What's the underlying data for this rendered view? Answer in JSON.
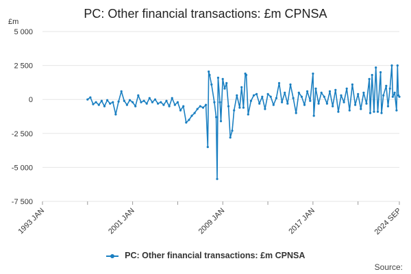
{
  "chart_data": {
    "type": "line",
    "title": "PC: Other financial transactions: £m CPNSA",
    "y_unit_label": "£m",
    "ylim": [
      -7500,
      5000
    ],
    "y_ticks": [
      5000,
      2500,
      0,
      -2500,
      -5000,
      -7500
    ],
    "y_tick_labels": [
      "5 000",
      "2 500",
      "0",
      "-2 500",
      "-5 000",
      "-7 500"
    ],
    "x_range": [
      "1993-01",
      "2024-09"
    ],
    "x_ticks": [
      "1993-01",
      "2001-01",
      "2009-01",
      "2017-01",
      "2024-09"
    ],
    "x_tick_labels": [
      "1993 JAN",
      "2001 JAN",
      "2009 JAN",
      "2017 JAN",
      "2024 SEP"
    ],
    "grid": "horizontal",
    "legend_position": "bottom",
    "source_label": "Source:",
    "series": [
      {
        "name": "PC: Other financial transactions: £m CPNSA",
        "color": "#1a7fc1",
        "points": [
          [
            "1997-01",
            0
          ],
          [
            "1997-04",
            150
          ],
          [
            "1997-07",
            -350
          ],
          [
            "1997-10",
            -200
          ],
          [
            "1998-01",
            -400
          ],
          [
            "1998-04",
            -100
          ],
          [
            "1998-07",
            -500
          ],
          [
            "1998-10",
            -50
          ],
          [
            "1999-01",
            -300
          ],
          [
            "1999-04",
            -200
          ],
          [
            "1999-07",
            -1100
          ],
          [
            "1999-10",
            -150
          ],
          [
            "2000-01",
            600
          ],
          [
            "2000-04",
            -100
          ],
          [
            "2000-07",
            -400
          ],
          [
            "2000-10",
            -50
          ],
          [
            "2001-01",
            -200
          ],
          [
            "2001-04",
            -500
          ],
          [
            "2001-07",
            300
          ],
          [
            "2001-10",
            -200
          ],
          [
            "2002-01",
            -100
          ],
          [
            "2002-04",
            -300
          ],
          [
            "2002-07",
            100
          ],
          [
            "2002-10",
            -200
          ],
          [
            "2003-01",
            0
          ],
          [
            "2003-04",
            -300
          ],
          [
            "2003-07",
            -200
          ],
          [
            "2003-10",
            -400
          ],
          [
            "2004-01",
            -100
          ],
          [
            "2004-04",
            -500
          ],
          [
            "2004-07",
            100
          ],
          [
            "2004-10",
            -400
          ],
          [
            "2005-01",
            -200
          ],
          [
            "2005-04",
            -800
          ],
          [
            "2005-07",
            -500
          ],
          [
            "2005-10",
            -1700
          ],
          [
            "2006-01",
            -1500
          ],
          [
            "2006-04",
            -1200
          ],
          [
            "2006-07",
            -1000
          ],
          [
            "2006-10",
            -700
          ],
          [
            "2007-01",
            -500
          ],
          [
            "2007-04",
            -600
          ],
          [
            "2007-07",
            -400
          ],
          [
            "2007-09",
            -3500
          ],
          [
            "2007-10",
            2050
          ],
          [
            "2007-11",
            1800
          ],
          [
            "2008-01",
            1100
          ],
          [
            "2008-04",
            -200
          ],
          [
            "2008-06",
            -1300
          ],
          [
            "2008-07",
            -5850
          ],
          [
            "2008-08",
            1600
          ],
          [
            "2008-10",
            -200
          ],
          [
            "2008-11",
            -1600
          ],
          [
            "2009-01",
            1500
          ],
          [
            "2009-03",
            800
          ],
          [
            "2009-05",
            1200
          ],
          [
            "2009-07",
            -500
          ],
          [
            "2009-09",
            -2800
          ],
          [
            "2009-11",
            -2300
          ],
          [
            "2010-01",
            -800
          ],
          [
            "2010-04",
            300
          ],
          [
            "2010-07",
            -600
          ],
          [
            "2010-09",
            900
          ],
          [
            "2010-11",
            -600
          ],
          [
            "2011-01",
            1900
          ],
          [
            "2011-02",
            1800
          ],
          [
            "2011-04",
            -1100
          ],
          [
            "2011-07",
            -100
          ],
          [
            "2011-10",
            300
          ],
          [
            "2012-01",
            400
          ],
          [
            "2012-04",
            -300
          ],
          [
            "2012-07",
            200
          ],
          [
            "2012-10",
            -700
          ],
          [
            "2013-01",
            400
          ],
          [
            "2013-04",
            200
          ],
          [
            "2013-07",
            -400
          ],
          [
            "2013-10",
            100
          ],
          [
            "2014-01",
            1200
          ],
          [
            "2014-04",
            -200
          ],
          [
            "2014-07",
            500
          ],
          [
            "2014-10",
            -300
          ],
          [
            "2015-01",
            1100
          ],
          [
            "2015-04",
            100
          ],
          [
            "2015-07",
            -1000
          ],
          [
            "2015-10",
            500
          ],
          [
            "2016-01",
            200
          ],
          [
            "2016-04",
            -400
          ],
          [
            "2016-07",
            600
          ],
          [
            "2016-10",
            -100
          ],
          [
            "2017-01",
            1900
          ],
          [
            "2017-02",
            -1200
          ],
          [
            "2017-04",
            800
          ],
          [
            "2017-07",
            -300
          ],
          [
            "2017-10",
            500
          ],
          [
            "2018-01",
            200
          ],
          [
            "2018-04",
            -300
          ],
          [
            "2018-07",
            600
          ],
          [
            "2018-10",
            -500
          ],
          [
            "2019-01",
            700
          ],
          [
            "2019-04",
            -900
          ],
          [
            "2019-07",
            300
          ],
          [
            "2019-10",
            -200
          ],
          [
            "2020-01",
            800
          ],
          [
            "2020-04",
            -800
          ],
          [
            "2020-07",
            1100
          ],
          [
            "2020-10",
            -400
          ],
          [
            "2021-01",
            400
          ],
          [
            "2021-04",
            -700
          ],
          [
            "2021-07",
            500
          ],
          [
            "2021-10",
            -300
          ],
          [
            "2022-01",
            1500
          ],
          [
            "2022-02",
            -1000
          ],
          [
            "2022-04",
            1800
          ],
          [
            "2022-06",
            -900
          ],
          [
            "2022-08",
            2350
          ],
          [
            "2022-10",
            -900
          ],
          [
            "2023-01",
            2000
          ],
          [
            "2023-02",
            -1000
          ],
          [
            "2023-04",
            300
          ],
          [
            "2023-07",
            1000
          ],
          [
            "2023-09",
            -500
          ],
          [
            "2023-11",
            800
          ],
          [
            "2024-01",
            2500
          ],
          [
            "2024-02",
            200
          ],
          [
            "2024-04",
            500
          ],
          [
            "2024-06",
            -800
          ],
          [
            "2024-07",
            2500
          ],
          [
            "2024-08",
            300
          ],
          [
            "2024-09",
            200
          ]
        ]
      }
    ]
  }
}
